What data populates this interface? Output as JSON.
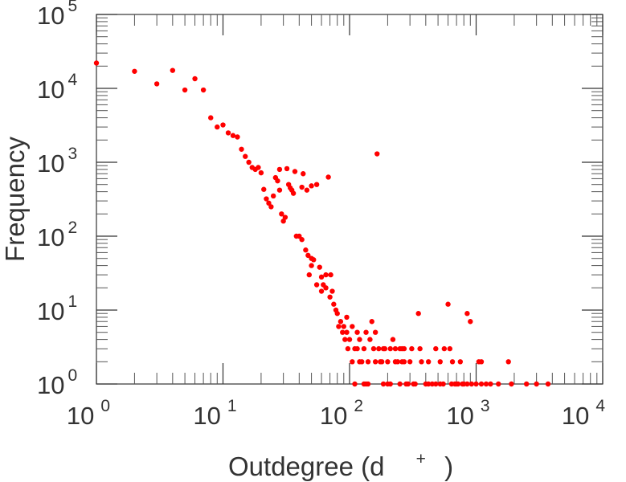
{
  "chart_data": {
    "type": "scatter",
    "xlabel": "Outdegree (d",
    "xlabel_superscript": "+",
    "xlabel_close": ")",
    "ylabel": "Frequency",
    "x_scale": "log",
    "y_scale": "log",
    "xlim": [
      1,
      10000
    ],
    "ylim": [
      1,
      100000
    ],
    "x_ticks": [
      {
        "base": "10",
        "exp": "0",
        "value": 1
      },
      {
        "base": "10",
        "exp": "1",
        "value": 10
      },
      {
        "base": "10",
        "exp": "2",
        "value": 100
      },
      {
        "base": "10",
        "exp": "3",
        "value": 1000
      },
      {
        "base": "10",
        "exp": "4",
        "value": 10000
      }
    ],
    "y_ticks": [
      {
        "base": "10",
        "exp": "0",
        "value": 1
      },
      {
        "base": "10",
        "exp": "1",
        "value": 10
      },
      {
        "base": "10",
        "exp": "2",
        "value": 100
      },
      {
        "base": "10",
        "exp": "3",
        "value": 1000
      },
      {
        "base": "10",
        "exp": "4",
        "value": 10000
      },
      {
        "base": "10",
        "exp": "5",
        "value": 100000
      }
    ],
    "grid": false,
    "marker_color": "#ff0000",
    "series": [
      {
        "points": [
          [
            1,
            22000
          ],
          [
            2,
            17000
          ],
          [
            3,
            11500
          ],
          [
            4,
            17500
          ],
          [
            5,
            9500
          ],
          [
            6,
            13500
          ],
          [
            7,
            9500
          ],
          [
            8,
            4000
          ],
          [
            9,
            3000
          ],
          [
            10,
            3200
          ],
          [
            11,
            2500
          ],
          [
            12,
            2300
          ],
          [
            13,
            2200
          ],
          [
            14,
            1500
          ],
          [
            15,
            1200
          ],
          [
            16,
            1000
          ],
          [
            17,
            850
          ],
          [
            18,
            800
          ],
          [
            19,
            850
          ],
          [
            20,
            720
          ],
          [
            21,
            430
          ],
          [
            22,
            320
          ],
          [
            23,
            280
          ],
          [
            24,
            250
          ],
          [
            25,
            350
          ],
          [
            26,
            620
          ],
          [
            27,
            560
          ],
          [
            28,
            800
          ],
          [
            29,
            200
          ],
          [
            30,
            160
          ],
          [
            31,
            180
          ],
          [
            32,
            820
          ],
          [
            33,
            500
          ],
          [
            34,
            450
          ],
          [
            36,
            380
          ],
          [
            37,
            750
          ],
          [
            38,
            100
          ],
          [
            40,
            100
          ],
          [
            42,
            90
          ],
          [
            43,
            700
          ],
          [
            45,
            65
          ],
          [
            46,
            420
          ],
          [
            47,
            55
          ],
          [
            50,
            50
          ],
          [
            52,
            48
          ],
          [
            55,
            500
          ],
          [
            58,
            38
          ],
          [
            60,
            28
          ],
          [
            62,
            22
          ],
          [
            65,
            20
          ],
          [
            70,
            15
          ],
          [
            75,
            12
          ],
          [
            80,
            9
          ],
          [
            85,
            7
          ],
          [
            90,
            6
          ],
          [
            95,
            5
          ],
          [
            100,
            4
          ],
          [
            110,
            3
          ],
          [
            120,
            2
          ],
          [
            68,
            630
          ],
          [
            71,
            30
          ],
          [
            73,
            18
          ],
          [
            78,
            10
          ],
          [
            82,
            6
          ],
          [
            88,
            5
          ],
          [
            92,
            4
          ],
          [
            97,
            3
          ],
          [
            105,
            2
          ],
          [
            115,
            3
          ],
          [
            125,
            2
          ],
          [
            130,
            1
          ],
          [
            135,
            1
          ],
          [
            140,
            2
          ],
          [
            150,
            7
          ],
          [
            160,
            5
          ],
          [
            165,
            1300
          ],
          [
            170,
            3
          ],
          [
            175,
            2
          ],
          [
            185,
            1
          ],
          [
            190,
            3
          ],
          [
            200,
            2
          ],
          [
            210,
            1
          ],
          [
            220,
            4
          ],
          [
            230,
            3
          ],
          [
            240,
            2
          ],
          [
            250,
            1
          ],
          [
            260,
            3
          ],
          [
            270,
            2
          ],
          [
            280,
            1
          ],
          [
            300,
            2
          ],
          [
            320,
            1
          ],
          [
            350,
            9
          ],
          [
            370,
            2
          ],
          [
            400,
            1
          ],
          [
            420,
            2
          ],
          [
            450,
            1
          ],
          [
            480,
            3
          ],
          [
            520,
            2
          ],
          [
            550,
            1
          ],
          [
            600,
            12
          ],
          [
            620,
            3
          ],
          [
            650,
            2
          ],
          [
            700,
            1
          ],
          [
            750,
            2
          ],
          [
            800,
            1
          ],
          [
            850,
            9
          ],
          [
            900,
            7
          ],
          [
            1000,
            1
          ],
          [
            1050,
            2
          ],
          [
            1100,
            2
          ],
          [
            1200,
            1
          ],
          [
            1500,
            1
          ],
          [
            1800,
            2
          ],
          [
            1900,
            1
          ],
          [
            2500,
            1
          ],
          [
            3000,
            1
          ],
          [
            3700,
            1
          ],
          [
            110,
            1
          ],
          [
            140,
            1
          ],
          [
            160,
            2
          ],
          [
            180,
            2
          ],
          [
            200,
            1
          ],
          [
            230,
            2
          ],
          [
            260,
            2
          ],
          [
            290,
            1
          ],
          [
            330,
            1
          ],
          [
            360,
            3
          ],
          [
            420,
            1
          ],
          [
            480,
            1
          ],
          [
            520,
            1
          ],
          [
            560,
            3
          ],
          [
            640,
            1
          ],
          [
            680,
            1
          ],
          [
            720,
            1
          ],
          [
            780,
            1
          ],
          [
            850,
            1
          ],
          [
            920,
            1
          ],
          [
            1100,
            1
          ],
          [
            1300,
            1
          ],
          [
            130,
            3
          ],
          [
            155,
            3
          ],
          [
            185,
            3
          ],
          [
            210,
            3
          ],
          [
            250,
            3
          ],
          [
            270,
            3
          ],
          [
            310,
            3
          ],
          [
            120,
            4
          ],
          [
            135,
            5
          ],
          [
            145,
            4
          ],
          [
            95,
            8
          ],
          [
            105,
            6
          ],
          [
            115,
            5
          ],
          [
            65,
            30
          ],
          [
            60,
            18
          ],
          [
            55,
            22
          ],
          [
            50,
            40
          ],
          [
            48,
            30
          ],
          [
            35,
            420
          ],
          [
            28,
            420
          ],
          [
            42,
            460
          ],
          [
            50,
            480
          ]
        ]
      }
    ]
  }
}
